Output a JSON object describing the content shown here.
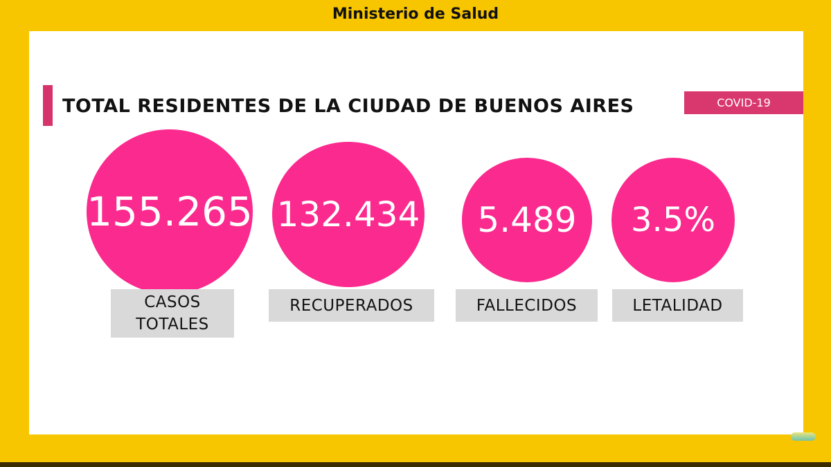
{
  "header": {
    "title": "Ministerio de Salud"
  },
  "slide": {
    "title": "TOTAL RESIDENTES DE LA CIUDAD DE BUENOS AIRES",
    "badge": "COVID-19",
    "stats": [
      {
        "value": "155.265",
        "label": "CASOS TOTALES"
      },
      {
        "value": "132.434",
        "label": "RECUPERADOS"
      },
      {
        "value": "5.489",
        "label": "FALLECIDOS"
      },
      {
        "value": "3.5%",
        "label": "LETALIDAD"
      }
    ]
  },
  "colors": {
    "background": "#f8c600",
    "accent": "#fb2a8e",
    "badge": "#d9386f",
    "label_bg": "#d9d9d9"
  }
}
